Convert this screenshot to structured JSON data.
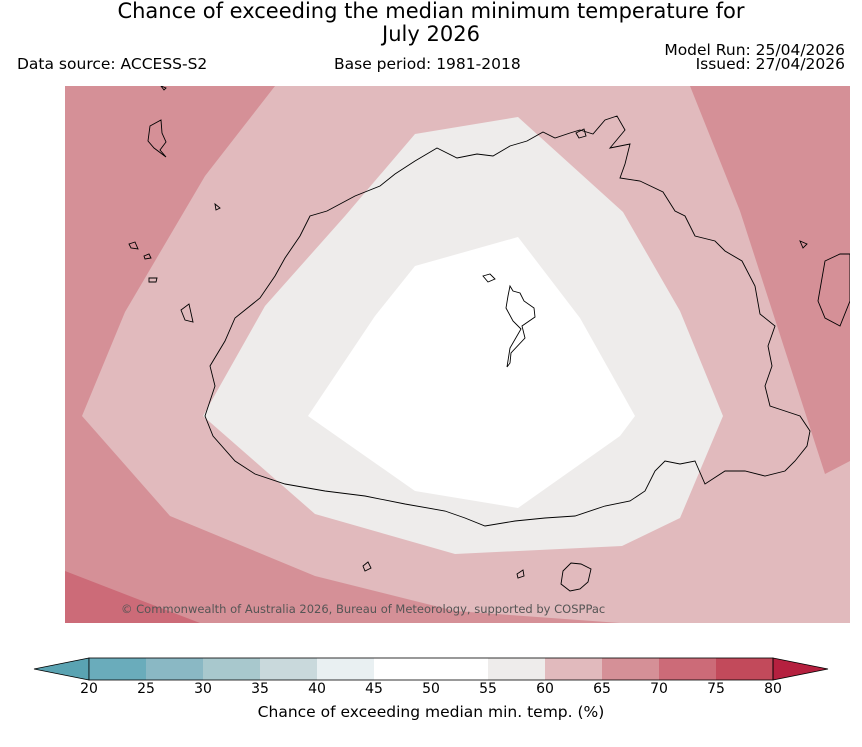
{
  "header": {
    "title_line1": "Chance of exceeding the median minimum temperature for",
    "title_line2": "July 2026",
    "data_source": "Data source: ACCESS-S2",
    "base_period": "Base period: 1981-2018",
    "model_run": "Model Run: 25/04/2026",
    "issued": "Issued: 27/04/2026"
  },
  "map": {
    "copyright": "© Commonwealth of Australia 2026, Bureau of Meteorology, supported by COSPPac",
    "zones": [
      {
        "category": "70-75",
        "color": "#cc6b78"
      },
      {
        "category": "65-70",
        "color": "#d59097"
      },
      {
        "category": "60-65",
        "color": "#e1babd"
      },
      {
        "category": "55-60",
        "color": "#eeeceb"
      },
      {
        "category": "45-55",
        "color": "#ffffff"
      }
    ]
  },
  "colorbar": {
    "label": "Chance of exceeding median min. temp. (%)",
    "ticks": [
      "20",
      "25",
      "30",
      "35",
      "40",
      "45",
      "50",
      "55",
      "60",
      "65",
      "70",
      "75",
      "80"
    ],
    "low_extend_color": "#5aa3b2",
    "high_extend_color": "#b5203f",
    "colors": [
      "#6aacbb",
      "#8ab8c4",
      "#a8c8cd",
      "#c9d9dc",
      "#e9f0f2",
      "#ffffff",
      "#ffffff",
      "#eeeceb",
      "#e1babd",
      "#d59097",
      "#cc6b78",
      "#c24a5b"
    ]
  }
}
